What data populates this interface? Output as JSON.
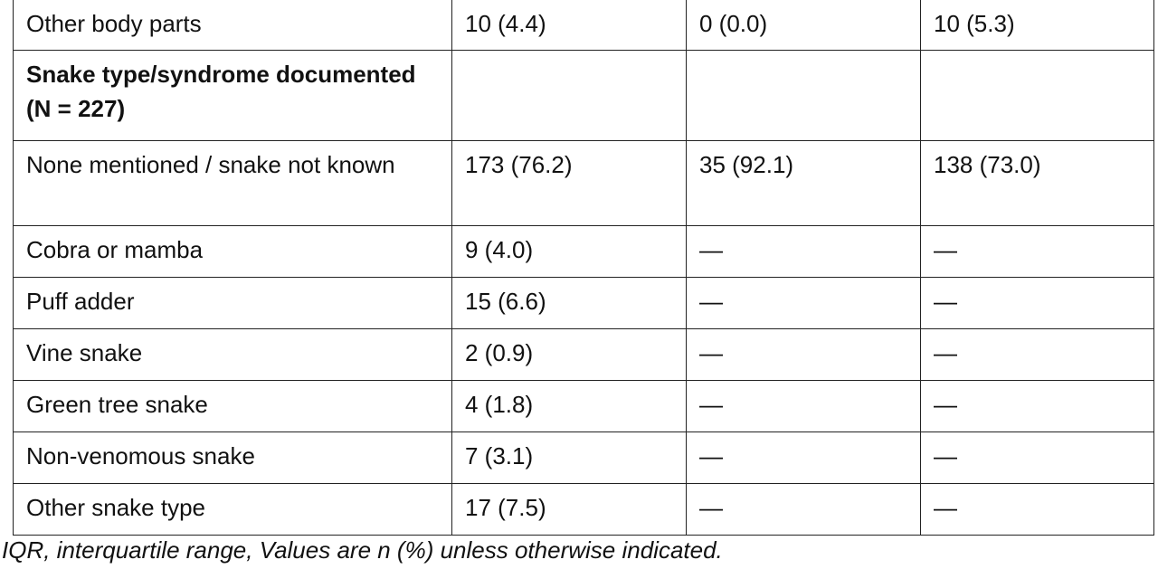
{
  "table": {
    "rows": [
      [
        "Other body parts",
        "10 (4.4)",
        "0 (0.0)",
        "10 (5.3)"
      ],
      [
        "Snake type/syndrome documented (N = 227)",
        "",
        "",
        ""
      ],
      [
        "None mentioned / snake not known",
        "173 (76.2)",
        "35 (92.1)",
        "138 (73.0)"
      ],
      [
        "Cobra or mamba",
        "9 (4.0)",
        "—",
        "—"
      ],
      [
        "Puff adder",
        "15 (6.6)",
        "—",
        "—"
      ],
      [
        "Vine snake",
        "2 (0.9)",
        "—",
        "—"
      ],
      [
        "Green tree snake",
        "4 (1.8)",
        "—",
        "—"
      ],
      [
        "Non-venomous snake",
        "7 (3.1)",
        "—",
        "—"
      ],
      [
        "Other snake type",
        "17 (7.5)",
        "—",
        "—"
      ]
    ]
  },
  "footnote": "IQR, interquartile range, Values are n (%) unless otherwise indicated."
}
